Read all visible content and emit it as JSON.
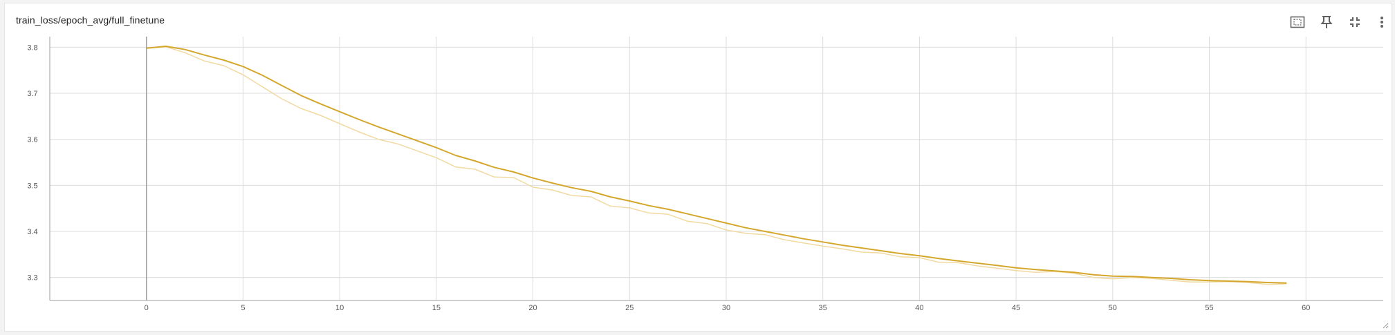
{
  "card": {
    "title": "train_loss/epoch_avg/full_finetune"
  },
  "toolbar": {
    "buttons": [
      {
        "name": "fit-domain-button",
        "icon": "fit-to-data-icon"
      },
      {
        "name": "pin-button",
        "icon": "pin-icon"
      },
      {
        "name": "collapse-button",
        "icon": "fullscreen-exit-icon"
      },
      {
        "name": "more-menu-button",
        "icon": "more-vert-icon"
      }
    ]
  },
  "colors": {
    "series": "#d4a72c",
    "series_raw": "#f1d9a0",
    "grid": "#dcdcdc",
    "axis": "#9e9e9e"
  },
  "chart_data": {
    "type": "line",
    "title": "",
    "xlabel": "",
    "ylabel": "",
    "xlim": [
      -5,
      64
    ],
    "ylim": [
      3.25,
      3.85
    ],
    "x_ticks": [
      0,
      5,
      10,
      15,
      20,
      25,
      30,
      35,
      40,
      45,
      50,
      55,
      60
    ],
    "y_ticks": [
      3.3,
      3.4,
      3.5,
      3.6,
      3.7,
      3.8
    ],
    "grid": true,
    "legend": "none",
    "series": [
      {
        "role": "smoothed",
        "x": [
          0,
          1,
          2,
          3,
          4,
          5,
          6,
          7,
          8,
          9,
          10,
          11,
          12,
          13,
          14,
          15,
          16,
          17,
          18,
          19,
          20,
          21,
          22,
          23,
          24,
          25,
          26,
          27,
          28,
          29,
          30,
          31,
          32,
          33,
          34,
          35,
          36,
          37,
          38,
          39,
          40,
          41,
          42,
          43,
          44,
          45,
          46,
          47,
          48,
          49,
          50,
          51,
          52,
          53,
          54,
          55,
          56,
          57,
          58,
          59
        ],
        "y": [
          3.798,
          3.802,
          3.795,
          3.783,
          3.772,
          3.758,
          3.739,
          3.717,
          3.695,
          3.677,
          3.66,
          3.643,
          3.627,
          3.612,
          3.597,
          3.582,
          3.565,
          3.553,
          3.539,
          3.529,
          3.516,
          3.505,
          3.495,
          3.487,
          3.475,
          3.466,
          3.456,
          3.448,
          3.438,
          3.428,
          3.418,
          3.408,
          3.4,
          3.392,
          3.384,
          3.377,
          3.37,
          3.364,
          3.358,
          3.352,
          3.347,
          3.341,
          3.336,
          3.331,
          3.326,
          3.321,
          3.317,
          3.314,
          3.311,
          3.306,
          3.303,
          3.302,
          3.3,
          3.298,
          3.295,
          3.293,
          3.292,
          3.291,
          3.289,
          3.288
        ]
      },
      {
        "role": "raw",
        "x": [
          0,
          1,
          2,
          3,
          4,
          5,
          6,
          7,
          8,
          9,
          10,
          11,
          12,
          13,
          14,
          15,
          16,
          17,
          18,
          19,
          20,
          21,
          22,
          23,
          24,
          25,
          26,
          27,
          28,
          29,
          30,
          31,
          32,
          33,
          34,
          35,
          36,
          37,
          38,
          39,
          40,
          41,
          42,
          43,
          44,
          45,
          46,
          47,
          48,
          49,
          50,
          51,
          52,
          53,
          54,
          55,
          56,
          57,
          58,
          59
        ],
        "y": [
          3.798,
          3.801,
          3.788,
          3.77,
          3.76,
          3.74,
          3.714,
          3.688,
          3.667,
          3.652,
          3.634,
          3.616,
          3.6,
          3.59,
          3.575,
          3.56,
          3.54,
          3.535,
          3.518,
          3.517,
          3.496,
          3.49,
          3.478,
          3.475,
          3.455,
          3.451,
          3.44,
          3.437,
          3.422,
          3.417,
          3.403,
          3.396,
          3.393,
          3.382,
          3.375,
          3.368,
          3.362,
          3.355,
          3.353,
          3.345,
          3.343,
          3.333,
          3.332,
          3.325,
          3.32,
          3.315,
          3.311,
          3.313,
          3.309,
          3.3,
          3.297,
          3.3,
          3.298,
          3.294,
          3.29,
          3.29,
          3.291,
          3.289,
          3.285,
          3.286
        ]
      }
    ]
  }
}
